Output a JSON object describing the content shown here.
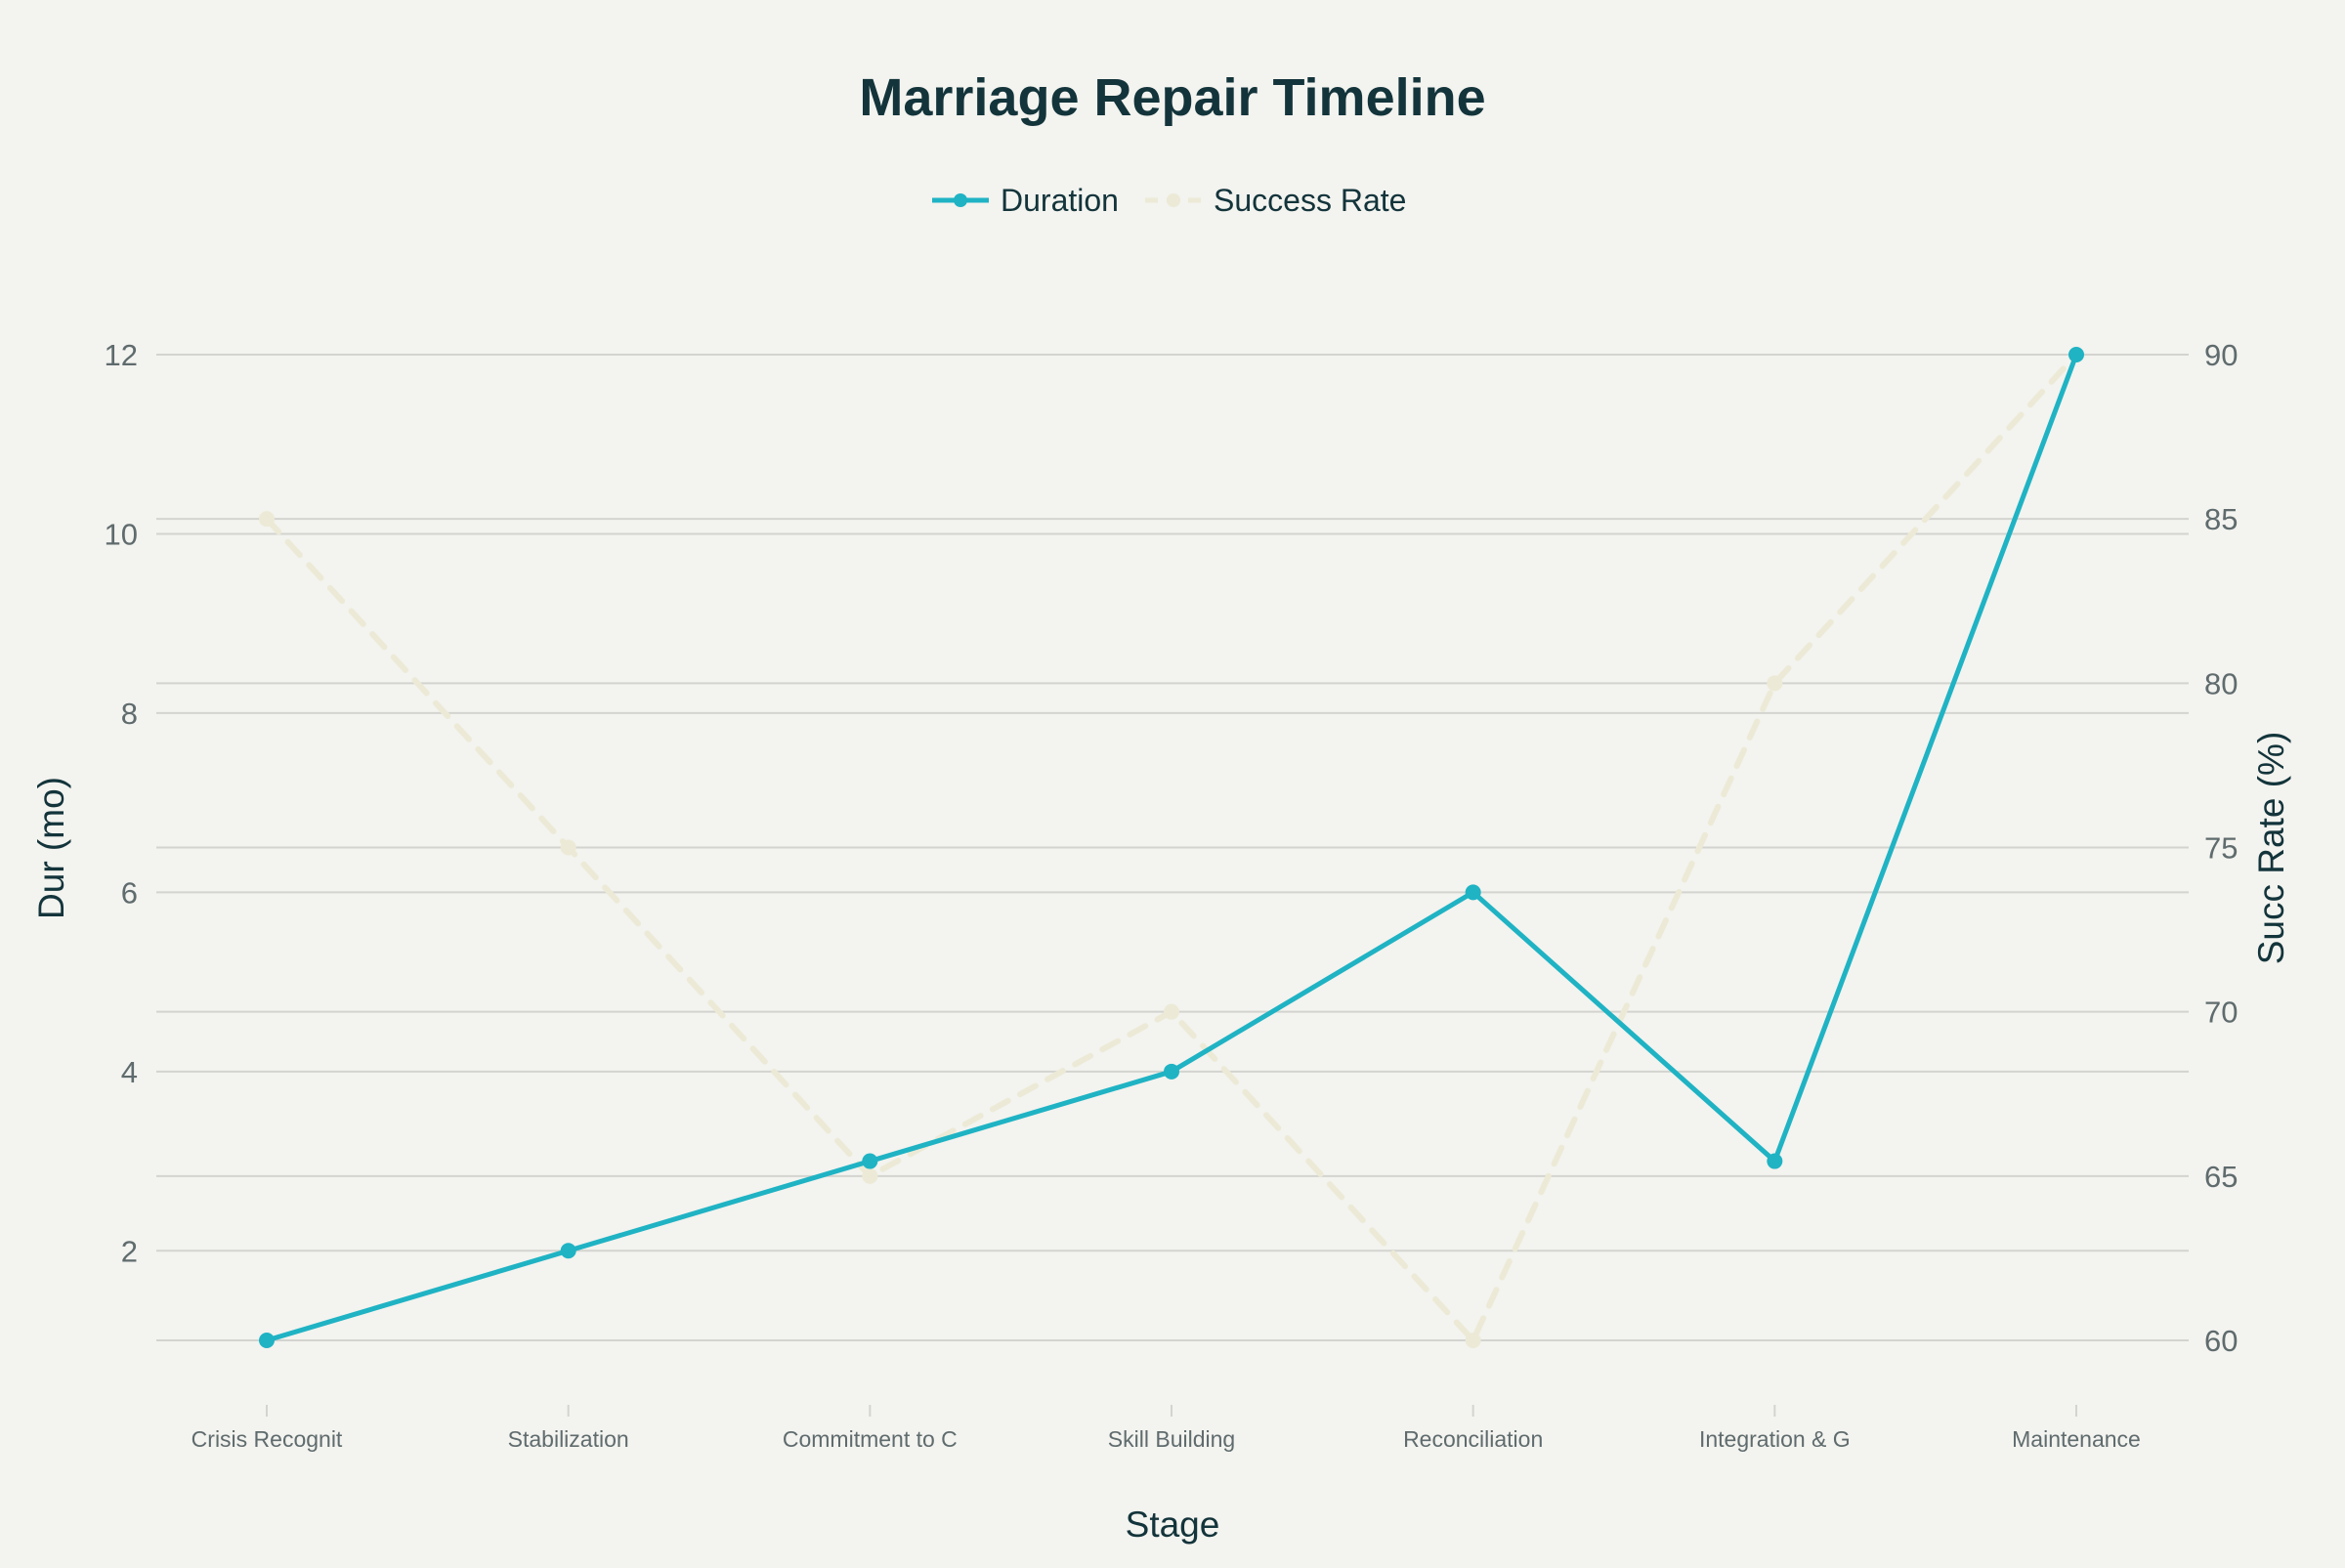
{
  "chart_data": {
    "type": "line",
    "title": "Marriage Repair Timeline",
    "xlabel": "Stage",
    "ylabel": "Dur (mo)",
    "y2label": "Succ Rate (%)",
    "categories": [
      "Crisis Recognit",
      "Stabilization",
      "Commitment to C",
      "Skill Building",
      "Reconciliation",
      "Integration & G",
      "Maintenance"
    ],
    "series": [
      {
        "name": "Duration",
        "axis": "left",
        "values": [
          1,
          2,
          3,
          4,
          6,
          3,
          12
        ],
        "color": "#1fb3c4",
        "style": "solid"
      },
      {
        "name": "Success Rate",
        "axis": "right",
        "values": [
          85,
          75,
          65,
          70,
          60,
          80,
          90
        ],
        "color": "#ecead6",
        "style": "dashed"
      }
    ],
    "ylim": [
      1,
      12
    ],
    "y2lim": [
      60,
      90
    ],
    "yticks": [
      2,
      4,
      6,
      8,
      10,
      12
    ],
    "y2ticks": [
      60,
      65,
      70,
      75,
      80,
      85,
      90
    ],
    "grid": true,
    "legend_position": "top-center",
    "colors": {
      "background": "#f3f3ef",
      "grid": "#d3d4cf",
      "text": "#13343b",
      "tick": "#5f6b6d"
    }
  }
}
